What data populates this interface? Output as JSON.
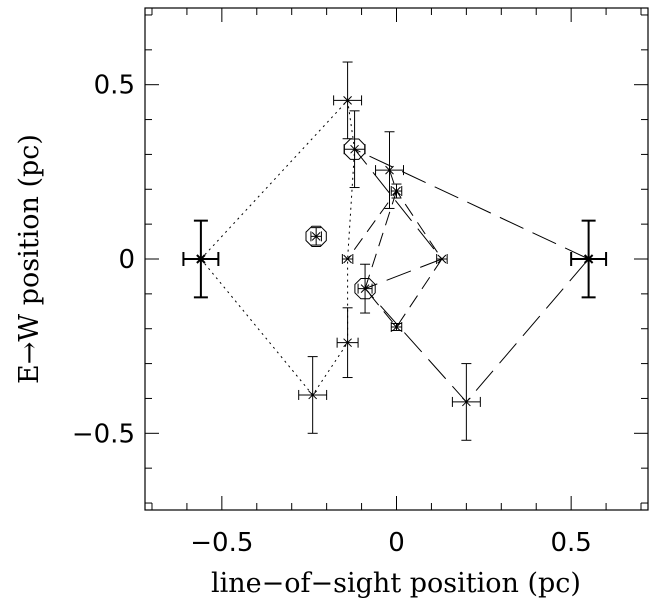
{
  "chart_data": {
    "type": "scatter",
    "xlabel": "line−of−sight position (pc)",
    "ylabel": "E→W position (pc)",
    "xlim": [
      -0.72,
      0.72
    ],
    "ylim": [
      -0.72,
      0.72
    ],
    "xticks": [
      {
        "value": -0.5,
        "label": "−0.5"
      },
      {
        "value": 0,
        "label": "0"
      },
      {
        "value": 0.5,
        "label": "0.5"
      }
    ],
    "yticks": [
      {
        "value": -0.5,
        "label": "−0.5"
      },
      {
        "value": 0,
        "label": "0"
      },
      {
        "value": 0.5,
        "label": "0.5"
      }
    ],
    "grid": false,
    "points": [
      {
        "x": -0.56,
        "y": 0.0,
        "xerr": 0.05,
        "yerr": 0.11,
        "bold": true
      },
      {
        "x": 0.55,
        "y": 0.0,
        "xerr": 0.05,
        "yerr": 0.11,
        "bold": true
      },
      {
        "x": -0.14,
        "y": 0.455,
        "xerr": 0.04,
        "yerr": 0.11
      },
      {
        "x": -0.12,
        "y": 0.315,
        "xerr": 0.03,
        "yerr": 0.11,
        "circled": true
      },
      {
        "x": -0.02,
        "y": 0.255,
        "xerr": 0.04,
        "yerr": 0.11
      },
      {
        "x": 0.0,
        "y": 0.195,
        "xerr": 0.015,
        "yerr": 0.02
      },
      {
        "x": -0.23,
        "y": 0.065,
        "xerr": 0.015,
        "yerr": 0.025,
        "circled": true
      },
      {
        "x": -0.14,
        "y": 0.0,
        "xerr": 0.015,
        "yerr": 0.0
      },
      {
        "x": 0.13,
        "y": 0.0,
        "xerr": 0.015,
        "yerr": 0.0
      },
      {
        "x": -0.09,
        "y": -0.085,
        "xerr": 0.02,
        "yerr": 0.07,
        "circled": true
      },
      {
        "x": 0.0,
        "y": -0.195,
        "xerr": 0.015,
        "yerr": 0.01
      },
      {
        "x": -0.14,
        "y": -0.24,
        "xerr": 0.03,
        "yerr": 0.1
      },
      {
        "x": -0.24,
        "y": -0.39,
        "xerr": 0.04,
        "yerr": 0.11
      },
      {
        "x": 0.2,
        "y": -0.41,
        "xerr": 0.04,
        "yerr": 0.11
      }
    ],
    "paths": [
      {
        "style": "dotted",
        "points": [
          [
            -0.56,
            0.0
          ],
          [
            -0.14,
            0.455
          ],
          [
            -0.12,
            0.315
          ],
          [
            -0.14,
            0.0
          ],
          [
            -0.14,
            -0.24
          ],
          [
            -0.24,
            -0.39
          ],
          [
            -0.56,
            0.0
          ]
        ]
      },
      {
        "style": "long-dash",
        "points": [
          [
            0.55,
            0.0
          ],
          [
            -0.12,
            0.315
          ],
          [
            0.13,
            0.0
          ],
          [
            -0.09,
            -0.085
          ],
          [
            0.2,
            -0.41
          ],
          [
            0.55,
            0.0
          ]
        ]
      },
      {
        "style": "medium-dash",
        "points": [
          [
            -0.02,
            0.255
          ],
          [
            0.0,
            0.195
          ],
          [
            -0.09,
            -0.085
          ],
          [
            0.0,
            -0.195
          ],
          [
            0.13,
            0.0
          ],
          [
            0.0,
            0.195
          ],
          [
            -0.14,
            0.0
          ]
        ]
      }
    ]
  }
}
